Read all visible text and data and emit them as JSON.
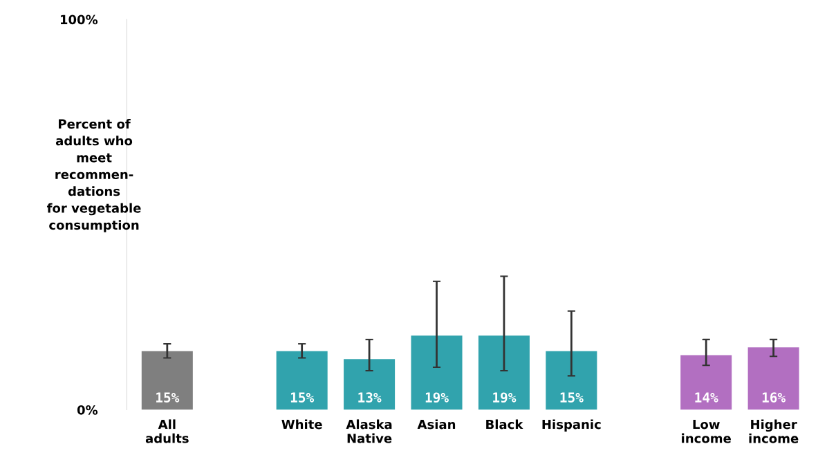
{
  "chart_data": {
    "type": "bar",
    "ylabel": "Percent of\nadults who\nmeet\nrecommen-\ndations\nfor vegetable\nconsumption",
    "categories": [
      "All\nadults",
      null,
      "White",
      "Alaska\nNative",
      "Asian",
      "Black",
      "Hispanic",
      null,
      "Low\nincome",
      "Higher\nincome"
    ],
    "values": [
      15,
      null,
      15,
      13,
      19,
      19,
      15,
      null,
      14,
      16
    ],
    "colors": [
      "#7f7f7f",
      null,
      "#31a3ad",
      "#31a3ad",
      "#31a3ad",
      "#31a3ad",
      "#31a3ad",
      null,
      "#b26fc1",
      "#b26fc1"
    ],
    "errors": [
      [
        13.3,
        16.9
      ],
      null,
      [
        13.3,
        16.9
      ],
      [
        10.0,
        18.0
      ],
      [
        10.9,
        32.9
      ],
      [
        10.0,
        34.2
      ],
      [
        8.7,
        25.3
      ],
      null,
      [
        11.4,
        18.0
      ],
      [
        13.7,
        18.0
      ]
    ],
    "value_labels": [
      "15%",
      null,
      "15%",
      "13%",
      "19%",
      "19%",
      "15%",
      null,
      "14%",
      "16%"
    ],
    "ylim": [
      0,
      100
    ],
    "yticks": [
      {
        "value": 0,
        "label": "0%"
      },
      {
        "value": 100,
        "label": "100%"
      }
    ],
    "grid": false,
    "legend": false
  }
}
